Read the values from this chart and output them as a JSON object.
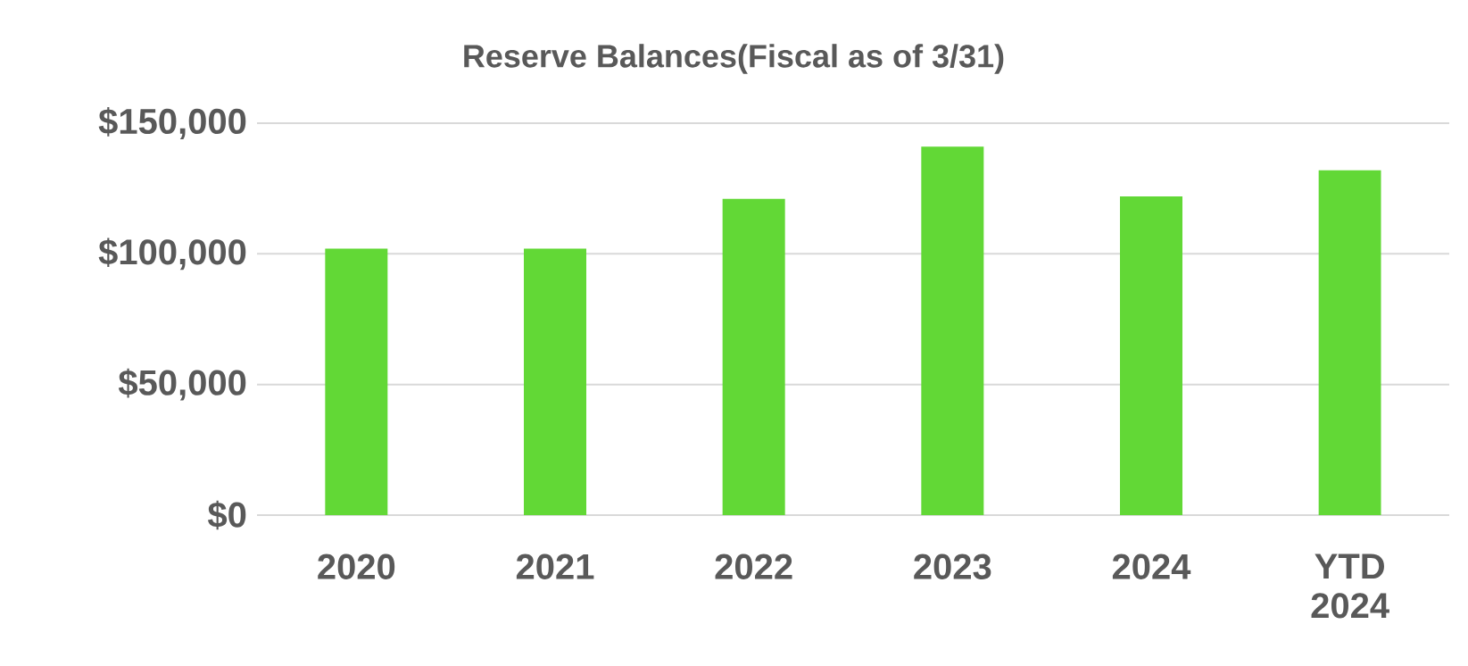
{
  "chart_data": {
    "type": "bar",
    "title": "Reserve Balances(Fiscal as of 3/31)",
    "categories": [
      "2020",
      "2021",
      "2022",
      "2023",
      "2024",
      "YTD 2024"
    ],
    "values": [
      102000,
      102000,
      121000,
      141000,
      122000,
      132000
    ],
    "color": "#62d836",
    "ylim": [
      0,
      150000
    ],
    "yticks": [
      {
        "value": 0,
        "label": "$0"
      },
      {
        "value": 50000,
        "label": "$50,000"
      },
      {
        "value": 100000,
        "label": "$100,000"
      },
      {
        "value": 150000,
        "label": "$150,000"
      }
    ],
    "grid": "y"
  }
}
